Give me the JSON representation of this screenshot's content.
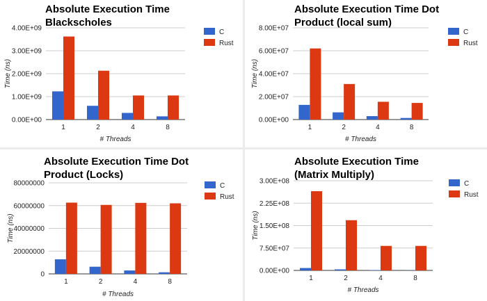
{
  "chart_data": [
    {
      "type": "bar",
      "title_line1": "Absolute Execution Time",
      "title_line2": "Blackscholes",
      "categories": [
        "1",
        "2",
        "4",
        "8"
      ],
      "xlabel": "# Threads",
      "ylabel": "Time (ns)",
      "ylim": [
        0,
        4000000000
      ],
      "yticks": [
        "0.00E+00",
        "1.00E+09",
        "2.00E+09",
        "3.00E+09",
        "4.00E+09"
      ],
      "grid": true,
      "legend_position": "right",
      "series": [
        {
          "name": "C",
          "color": "#3366cc",
          "values": [
            1230000000,
            600000000,
            290000000,
            140000000
          ]
        },
        {
          "name": "Rust",
          "color": "#dc3912",
          "values": [
            3620000000,
            2130000000,
            1050000000,
            1050000000
          ]
        }
      ]
    },
    {
      "type": "bar",
      "title_line1": "Absolute Execution Time Dot",
      "title_line2": "Product (local sum)",
      "categories": [
        "1",
        "2",
        "4",
        "8"
      ],
      "xlabel": "# Threads",
      "ylabel": "Time (ns)",
      "ylim": [
        0,
        80000000
      ],
      "yticks": [
        "0.00E+00",
        "2.00E+07",
        "4.00E+07",
        "6.00E+07",
        "8.00E+07"
      ],
      "grid": true,
      "legend_position": "right",
      "series": [
        {
          "name": "C",
          "color": "#3366cc",
          "values": [
            12800000,
            6300000,
            3000000,
            1400000
          ]
        },
        {
          "name": "Rust",
          "color": "#dc3912",
          "values": [
            62000000,
            31000000,
            15500000,
            14500000
          ]
        }
      ]
    },
    {
      "type": "bar",
      "title_line1": "Absolute Execution Time Dot",
      "title_line2": "Product (Locks)",
      "categories": [
        "1",
        "2",
        "4",
        "8"
      ],
      "xlabel": "# Threads",
      "ylabel": "Time (ns)",
      "ylim": [
        0,
        80000000
      ],
      "yticks": [
        "0",
        "20000000",
        "40000000",
        "60000000",
        "80000000"
      ],
      "grid": true,
      "legend_position": "right",
      "series": [
        {
          "name": "C",
          "color": "#3366cc",
          "values": [
            12800000,
            6300000,
            3000000,
            1400000
          ]
        },
        {
          "name": "Rust",
          "color": "#dc3912",
          "values": [
            62600000,
            60600000,
            62400000,
            62000000
          ]
        }
      ]
    },
    {
      "type": "bar",
      "title_line1": "Absolute Execution Time",
      "title_line2": "(Matrix Multiply)",
      "categories": [
        "1",
        "2",
        "4",
        "8"
      ],
      "xlabel": "# Threads",
      "ylabel": "Time (ns)",
      "ylim": [
        0,
        300000000
      ],
      "yticks": [
        "0.00E+00",
        "7.50E+07",
        "1.50E+08",
        "2.25E+08",
        "3.00E+08"
      ],
      "grid": true,
      "legend_position": "right",
      "series": [
        {
          "name": "C",
          "color": "#3366cc",
          "values": [
            8000000,
            3500000,
            1200000,
            500000
          ]
        },
        {
          "name": "Rust",
          "color": "#dc3912",
          "values": [
            265000000,
            168000000,
            82000000,
            82000000
          ]
        }
      ]
    }
  ]
}
